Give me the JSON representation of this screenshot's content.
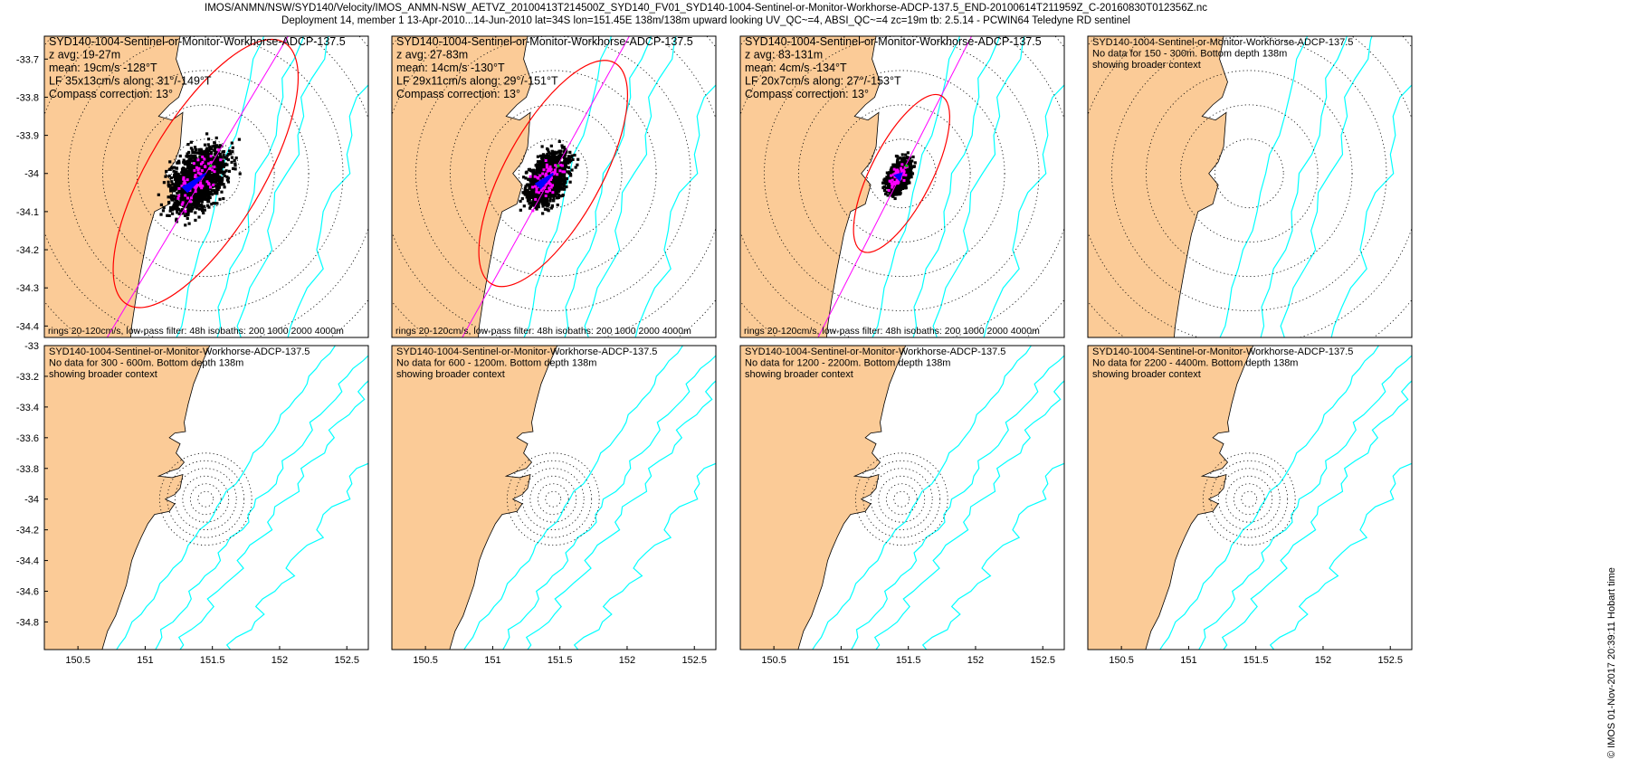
{
  "header": {
    "line1": "IMOS/ANMN/NSW/SYD140/Velocity/IMOS_ANMN-NSW_AETVZ_20100413T214500Z_SYD140_FV01_SYD140-1004-Sentinel-or-Monitor-Workhorse-ADCP-137.5_END-20100614T211959Z_C-20160830T012356Z.nc",
    "line2": "Deployment 14, member 1 13-Apr-2010...14-Jun-2010 lat=34S lon=151.45E 138m/138m upward looking UV_QC~=4, ABSI_QC~=4 zc=19m tb: 2.5.14 - PCWIN64 Teledyne RD sentinel"
  },
  "stamp": "© IMOS 01-Nov-2017 20:39:11 Hobart time",
  "colors": {
    "land": "#FBCB97",
    "isobath": "#00FFFF",
    "principal_axis": "#FF00FF",
    "ellipse": "#FF0000",
    "mean_vector": "#0000FF",
    "scatter": "#000000",
    "scatter_subset": "#FF00FF"
  },
  "chart_data": [
    {
      "type": "scatter",
      "title_lines": [
        "SYD140-1004-Sentinel-or-Monitor-Workhorse-ADCP-137.5",
        "z avg: 19-27m",
        "mean: 19cm/s -128°T",
        "LF 35x13cm/s along: 31°/-149°T",
        "Compass correction: 13°"
      ],
      "footer": "rings 20-120cm/s, low-pass filter: 48h isobaths: 200 1000 2000 4000m",
      "ylim": [
        -34.43,
        -33.64
      ],
      "yticks": [
        -33.7,
        -33.8,
        -33.9,
        -34,
        -34.1,
        -34.2,
        -34.3,
        -34.4
      ],
      "mean_speed_cm_s": 19,
      "mean_direction_degT": -128,
      "ellipse_major_cm_s": 35,
      "ellipse_minor_cm_s": 13,
      "along_axis_degT": 31,
      "scatter_extent_deg": 0.2
    },
    {
      "type": "scatter",
      "title_lines": [
        "SYD140-1004-Sentinel-or-Monitor-Workhorse-ADCP-137.5",
        "z avg: 27-83m",
        "mean: 14cm/s -130°T",
        "LF 29x11cm/s along: 29°/-151°T",
        "Compass correction: 13°"
      ],
      "footer": "rings 20-120cm/s, low-pass filter: 48h isobaths: 200 1000 2000 4000m",
      "ylim": [
        -34.43,
        -33.64
      ],
      "yticks": [],
      "mean_speed_cm_s": 14,
      "mean_direction_degT": -130,
      "ellipse_major_cm_s": 29,
      "ellipse_minor_cm_s": 11,
      "along_axis_degT": 29,
      "scatter_extent_deg": 0.15
    },
    {
      "type": "scatter",
      "title_lines": [
        "SYD140-1004-Sentinel-or-Monitor-Workhorse-ADCP-137.5",
        "z avg: 83-131m",
        "mean: 4cm/s -134°T",
        "LF 20x7cm/s along: 27°/-153°T",
        "Compass correction: 13°"
      ],
      "footer": "rings 20-120cm/s, low-pass filter: 48h isobaths: 200 1000 2000 4000m",
      "ylim": [
        -34.43,
        -33.64
      ],
      "yticks": [],
      "mean_speed_cm_s": 4,
      "mean_direction_degT": -134,
      "ellipse_major_cm_s": 20,
      "ellipse_minor_cm_s": 7,
      "along_axis_degT": 27,
      "scatter_extent_deg": 0.09
    },
    {
      "type": "scatter",
      "title_lines": [
        "SYD140-1004-Sentinel-or-Monitor-Workhorse-ADCP-137.5",
        "No data for 150 - 300m. Bottom depth 138m",
        "showing broader context"
      ],
      "footer": "",
      "ylim": [
        -34.43,
        -33.64
      ],
      "yticks": []
    },
    {
      "type": "scatter",
      "title_lines": [
        "SYD140-1004-Sentinel-or-Monitor-Workhorse-ADCP-137.5",
        "No data for 300 - 600m. Bottom depth 138m",
        "showing broader context"
      ],
      "footer": "",
      "ylim": [
        -34.98,
        -33.0
      ],
      "yticks": [
        -33,
        -33.2,
        -33.4,
        -33.6,
        -33.8,
        -34,
        -34.2,
        -34.4,
        -34.6,
        -34.8
      ],
      "xticks": [
        150.5,
        151,
        151.5,
        152,
        152.5
      ]
    },
    {
      "type": "scatter",
      "title_lines": [
        "SYD140-1004-Sentinel-or-Monitor-Workhorse-ADCP-137.5",
        "No data for 600 - 1200m. Bottom depth 138m",
        "showing broader context"
      ],
      "footer": "",
      "ylim": [
        -34.98,
        -33.0
      ],
      "yticks": [],
      "xticks": [
        150.5,
        151,
        151.5,
        152,
        152.5
      ]
    },
    {
      "type": "scatter",
      "title_lines": [
        "SYD140-1004-Sentinel-or-Monitor-Workhorse-ADCP-137.5",
        "No data for 1200 - 2200m. Bottom depth 138m",
        "showing broader context"
      ],
      "footer": "",
      "ylim": [
        -34.98,
        -33.0
      ],
      "yticks": [],
      "xticks": [
        150.5,
        151,
        151.5,
        152,
        152.5
      ]
    },
    {
      "type": "scatter",
      "title_lines": [
        "SYD140-1004-Sentinel-or-Monitor-Workhorse-ADCP-137.5",
        "No data for 2200 - 4400m. Bottom depth 138m",
        "showing broader context"
      ],
      "footer": "",
      "ylim": [
        -34.98,
        -33.0
      ],
      "yticks": [],
      "xticks": [
        150.5,
        151,
        151.5,
        152,
        152.5
      ]
    }
  ]
}
